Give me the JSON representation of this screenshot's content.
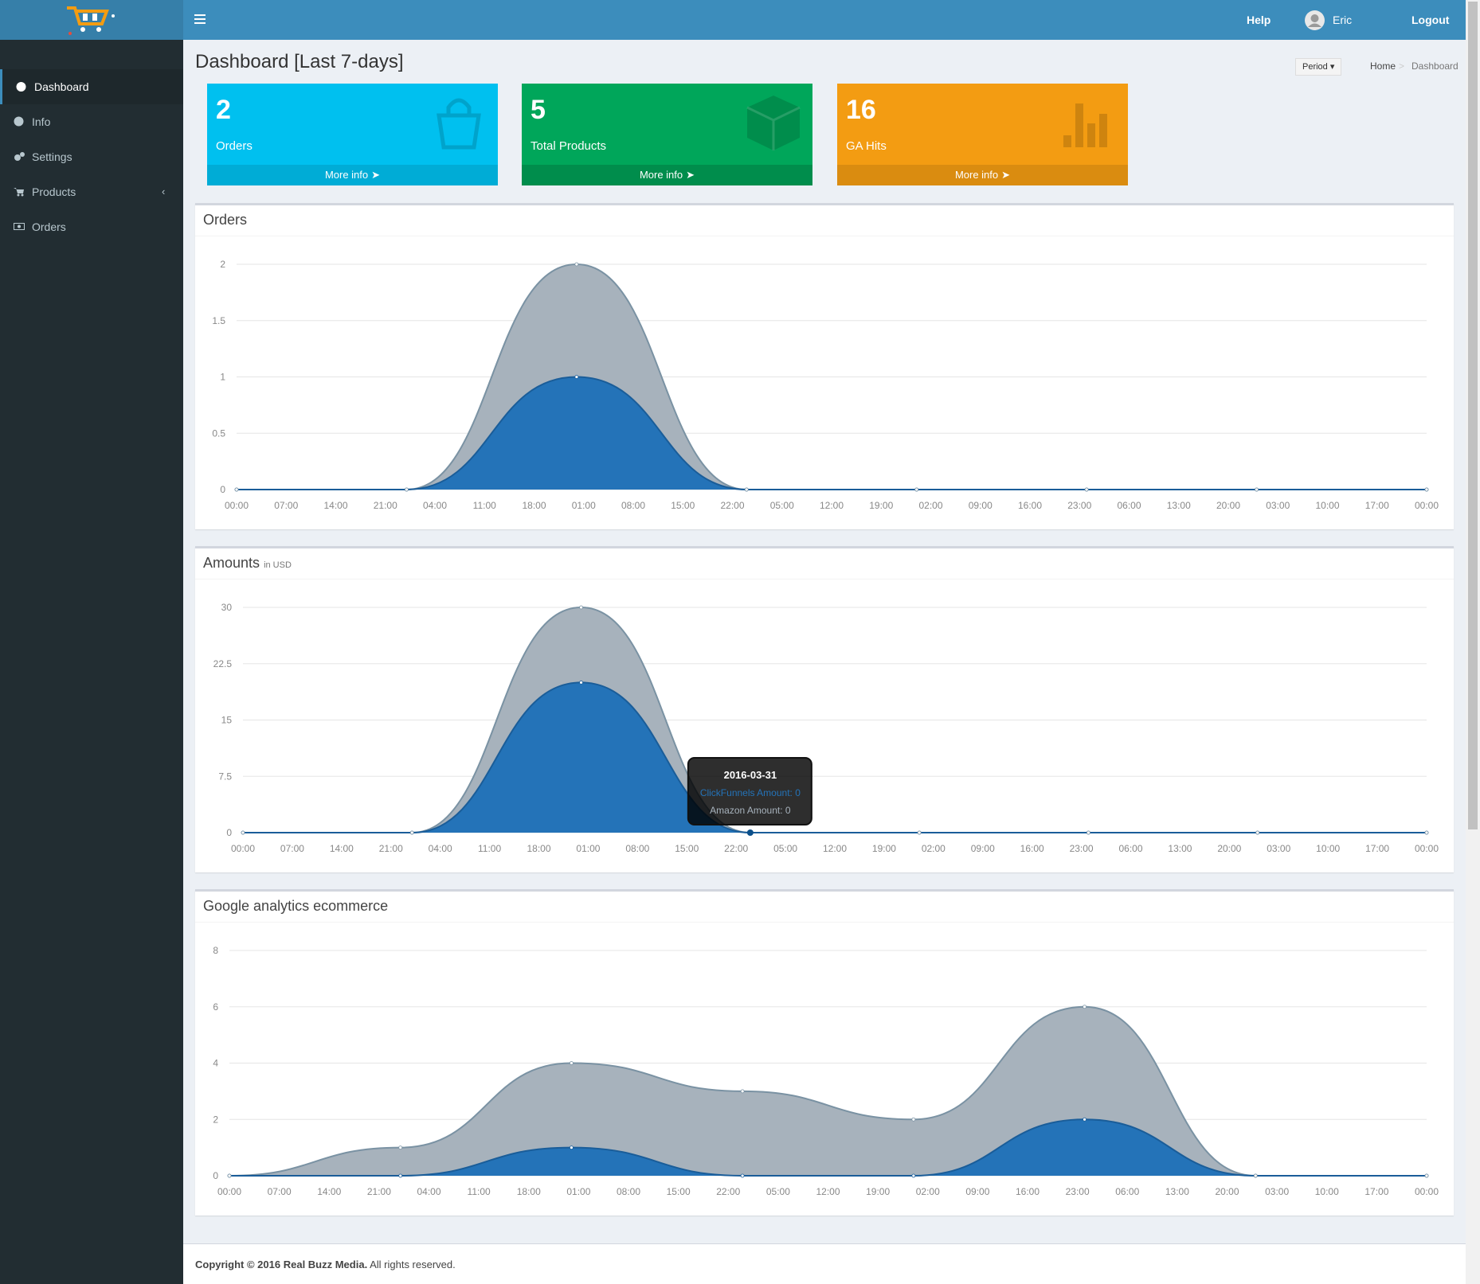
{
  "header": {
    "help": "Help",
    "user": "Eric",
    "logout": "Logout"
  },
  "sidebar": {
    "items": [
      "Dashboard",
      "Info",
      "Settings",
      "Products",
      "Orders"
    ]
  },
  "page": {
    "title": "Dashboard [Last 7-days]",
    "period": "Period",
    "breadcrumb": [
      "Home",
      "Dashboard"
    ]
  },
  "info_boxes": [
    {
      "value": 2,
      "label": "Orders",
      "link": "More info",
      "color": "#00c0ef",
      "footer_color": "#00acd6"
    },
    {
      "value": 5,
      "label": "Total Products",
      "link": "More info",
      "color": "#00a65a",
      "footer_color": "#008d4c"
    },
    {
      "value": 16,
      "label": "GA Hits",
      "link": "More info",
      "color": "#f39c12",
      "footer_color": "#da8c10"
    }
  ],
  "chart_data": [
    {
      "type": "area",
      "title": "Orders",
      "stacked": true,
      "grid": true,
      "x": [
        0,
        24,
        48,
        72,
        96,
        120,
        144,
        168
      ],
      "xlim": [
        0,
        168
      ],
      "xticks": [
        {
          "value": 0,
          "label": "00:00"
        },
        {
          "value": 7,
          "label": "07:00"
        },
        {
          "value": 14,
          "label": "14:00"
        },
        {
          "value": 21,
          "label": "21:00"
        },
        {
          "value": 28,
          "label": "04:00"
        },
        {
          "value": 35,
          "label": "11:00"
        },
        {
          "value": 42,
          "label": "18:00"
        },
        {
          "value": 49,
          "label": "01:00"
        },
        {
          "value": 56,
          "label": "08:00"
        },
        {
          "value": 63,
          "label": "15:00"
        },
        {
          "value": 70,
          "label": "22:00"
        },
        {
          "value": 77,
          "label": "05:00"
        },
        {
          "value": 84,
          "label": "12:00"
        },
        {
          "value": 91,
          "label": "19:00"
        },
        {
          "value": 98,
          "label": "02:00"
        },
        {
          "value": 105,
          "label": "09:00"
        },
        {
          "value": 112,
          "label": "16:00"
        },
        {
          "value": 119,
          "label": "23:00"
        },
        {
          "value": 126,
          "label": "06:00"
        },
        {
          "value": 133,
          "label": "13:00"
        },
        {
          "value": 140,
          "label": "20:00"
        },
        {
          "value": 147,
          "label": "03:00"
        },
        {
          "value": 154,
          "label": "10:00"
        },
        {
          "value": 161,
          "label": "17:00"
        },
        {
          "value": 168,
          "label": "00:00"
        }
      ],
      "ylim": [
        0,
        2
      ],
      "yticks": [
        0,
        0.5,
        1,
        1.5,
        2
      ],
      "series": [
        {
          "color": "#2473b8",
          "line_color": "#1a5d99",
          "values": [
            0,
            0,
            1,
            0,
            0,
            0,
            0,
            0
          ]
        },
        {
          "color": "#a7b2bc",
          "line_color": "#7a92a3",
          "values": [
            0,
            0,
            1,
            0,
            0,
            0,
            0,
            0
          ]
        }
      ]
    },
    {
      "type": "area",
      "title": "Amounts",
      "subtitle": "in USD",
      "stacked": true,
      "grid": true,
      "x": [
        0,
        24,
        48,
        72,
        96,
        120,
        144,
        168
      ],
      "xlim": [
        0,
        168
      ],
      "xticks": [
        {
          "value": 0,
          "label": "00:00"
        },
        {
          "value": 7,
          "label": "07:00"
        },
        {
          "value": 14,
          "label": "14:00"
        },
        {
          "value": 21,
          "label": "21:00"
        },
        {
          "value": 28,
          "label": "04:00"
        },
        {
          "value": 35,
          "label": "11:00"
        },
        {
          "value": 42,
          "label": "18:00"
        },
        {
          "value": 49,
          "label": "01:00"
        },
        {
          "value": 56,
          "label": "08:00"
        },
        {
          "value": 63,
          "label": "15:00"
        },
        {
          "value": 70,
          "label": "22:00"
        },
        {
          "value": 77,
          "label": "05:00"
        },
        {
          "value": 84,
          "label": "12:00"
        },
        {
          "value": 91,
          "label": "19:00"
        },
        {
          "value": 98,
          "label": "02:00"
        },
        {
          "value": 105,
          "label": "09:00"
        },
        {
          "value": 112,
          "label": "16:00"
        },
        {
          "value": 119,
          "label": "23:00"
        },
        {
          "value": 126,
          "label": "06:00"
        },
        {
          "value": 133,
          "label": "13:00"
        },
        {
          "value": 140,
          "label": "20:00"
        },
        {
          "value": 147,
          "label": "03:00"
        },
        {
          "value": 154,
          "label": "10:00"
        },
        {
          "value": 161,
          "label": "17:00"
        },
        {
          "value": 168,
          "label": "00:00"
        }
      ],
      "ylim": [
        0,
        30
      ],
      "yticks": [
        0,
        7.5,
        15,
        22.5,
        30
      ],
      "series": [
        {
          "color": "#2473b8",
          "line_color": "#1a5d99",
          "values": [
            0,
            0,
            20,
            0,
            0,
            0,
            0,
            0
          ]
        },
        {
          "color": "#a7b2bc",
          "line_color": "#7a92a3",
          "values": [
            0,
            0,
            10,
            0,
            0,
            0,
            0,
            0
          ]
        }
      ],
      "tooltip": {
        "x": 72,
        "title": "2016-03-31",
        "lines": [
          "ClickFunnels Amount: 0",
          "Amazon Amount: 0"
        ]
      }
    },
    {
      "type": "area",
      "title": "Google analytics ecommerce",
      "stacked": true,
      "grid": true,
      "x": [
        0,
        24,
        48,
        72,
        96,
        120,
        144,
        168
      ],
      "xlim": [
        0,
        168
      ],
      "xticks": [
        {
          "value": 0,
          "label": "00:00"
        },
        {
          "value": 7,
          "label": "07:00"
        },
        {
          "value": 14,
          "label": "14:00"
        },
        {
          "value": 21,
          "label": "21:00"
        },
        {
          "value": 28,
          "label": "04:00"
        },
        {
          "value": 35,
          "label": "11:00"
        },
        {
          "value": 42,
          "label": "18:00"
        },
        {
          "value": 49,
          "label": "01:00"
        },
        {
          "value": 56,
          "label": "08:00"
        },
        {
          "value": 63,
          "label": "15:00"
        },
        {
          "value": 70,
          "label": "22:00"
        },
        {
          "value": 77,
          "label": "05:00"
        },
        {
          "value": 84,
          "label": "12:00"
        },
        {
          "value": 91,
          "label": "19:00"
        },
        {
          "value": 98,
          "label": "02:00"
        },
        {
          "value": 105,
          "label": "09:00"
        },
        {
          "value": 112,
          "label": "16:00"
        },
        {
          "value": 119,
          "label": "23:00"
        },
        {
          "value": 126,
          "label": "06:00"
        },
        {
          "value": 133,
          "label": "13:00"
        },
        {
          "value": 140,
          "label": "20:00"
        },
        {
          "value": 147,
          "label": "03:00"
        },
        {
          "value": 154,
          "label": "10:00"
        },
        {
          "value": 161,
          "label": "17:00"
        },
        {
          "value": 168,
          "label": "00:00"
        }
      ],
      "ylim": [
        0,
        8
      ],
      "yticks": [
        0,
        2,
        4,
        6,
        8
      ],
      "series": [
        {
          "color": "#2473b8",
          "line_color": "#1a5d99",
          "values": [
            0,
            0,
            1,
            0,
            0,
            2,
            0,
            0
          ]
        },
        {
          "color": "#a7b2bc",
          "line_color": "#7a92a3",
          "values": [
            0,
            1,
            3,
            3,
            2,
            4,
            0,
            0
          ]
        }
      ]
    }
  ],
  "footer": {
    "copyright": "Copyright © 2016 Real Buzz Media.",
    "rights": "All rights reserved."
  }
}
